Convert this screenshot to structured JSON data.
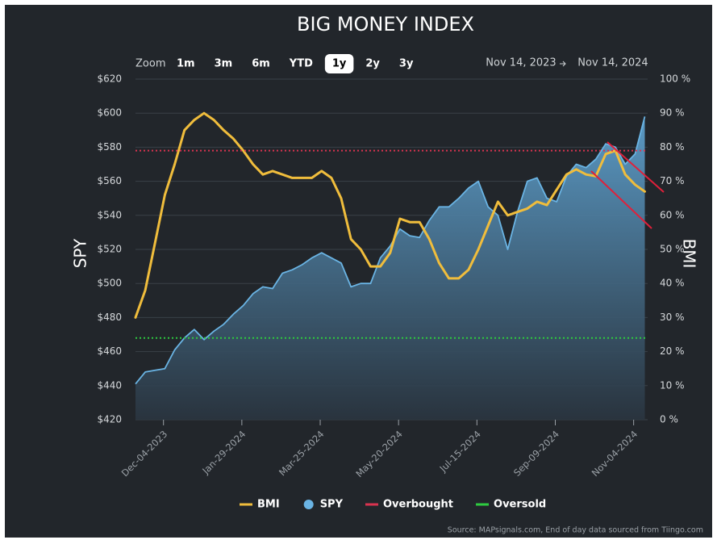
{
  "chart_data": {
    "type": "line",
    "title": "BIG MONEY INDEX",
    "y_label": "SPY",
    "y2_label": "BMI",
    "x": [
      "2023-11-14",
      "2023-11-21",
      "2023-11-28",
      "2023-12-05",
      "2023-12-12",
      "2023-12-19",
      "2023-12-26",
      "2024-01-02",
      "2024-01-09",
      "2024-01-16",
      "2024-01-23",
      "2024-01-30",
      "2024-02-06",
      "2024-02-13",
      "2024-02-20",
      "2024-02-27",
      "2024-03-05",
      "2024-03-12",
      "2024-03-19",
      "2024-03-26",
      "2024-04-02",
      "2024-04-09",
      "2024-04-16",
      "2024-04-23",
      "2024-04-30",
      "2024-05-07",
      "2024-05-14",
      "2024-05-21",
      "2024-05-28",
      "2024-06-04",
      "2024-06-11",
      "2024-06-18",
      "2024-06-25",
      "2024-07-02",
      "2024-07-09",
      "2024-07-16",
      "2024-07-23",
      "2024-07-30",
      "2024-08-06",
      "2024-08-13",
      "2024-08-20",
      "2024-08-27",
      "2024-09-03",
      "2024-09-10",
      "2024-09-17",
      "2024-09-24",
      "2024-10-01",
      "2024-10-08",
      "2024-10-15",
      "2024-10-22",
      "2024-10-29",
      "2024-11-05",
      "2024-11-12"
    ],
    "xlim": [
      "2023-11-14",
      "2024-11-14"
    ],
    "xticks": [
      {
        "value": "2023-12-04",
        "label": "Dec-04-2023"
      },
      {
        "value": "2024-01-29",
        "label": "Jan-29-2024"
      },
      {
        "value": "2024-03-25",
        "label": "Mar-25-2024"
      },
      {
        "value": "2024-05-20",
        "label": "May-20-2024"
      },
      {
        "value": "2024-07-15",
        "label": "Jul-15-2024"
      },
      {
        "value": "2024-09-09",
        "label": "Sep-09-2024"
      },
      {
        "value": "2024-11-04",
        "label": "Nov-04-2024"
      }
    ],
    "ylim": [
      420,
      620
    ],
    "yticks": [
      {
        "value": 420,
        "label": "$420"
      },
      {
        "value": 440,
        "label": "$440"
      },
      {
        "value": 460,
        "label": "$460"
      },
      {
        "value": 480,
        "label": "$480"
      },
      {
        "value": 500,
        "label": "$500"
      },
      {
        "value": 520,
        "label": "$520"
      },
      {
        "value": 540,
        "label": "$540"
      },
      {
        "value": 560,
        "label": "$560"
      },
      {
        "value": 580,
        "label": "$580"
      },
      {
        "value": 600,
        "label": "$600"
      },
      {
        "value": 620,
        "label": "$620"
      }
    ],
    "y2lim": [
      0,
      100
    ],
    "y2ticks": [
      {
        "value": 0,
        "label": "0 %"
      },
      {
        "value": 10,
        "label": "10 %"
      },
      {
        "value": 20,
        "label": "20 %"
      },
      {
        "value": 30,
        "label": "30 %"
      },
      {
        "value": 40,
        "label": "40 %"
      },
      {
        "value": 50,
        "label": "50 %"
      },
      {
        "value": 60,
        "label": "60 %"
      },
      {
        "value": 70,
        "label": "70 %"
      },
      {
        "value": 80,
        "label": "80 %"
      },
      {
        "value": 90,
        "label": "90 %"
      },
      {
        "value": 100,
        "label": "100 %"
      }
    ],
    "grid": true,
    "series": [
      {
        "name": "BMI",
        "color": "#f0bd3c",
        "axis": "y2",
        "style": "line",
        "values": [
          30,
          38,
          52,
          66,
          75,
          85,
          88,
          90,
          88,
          85,
          82.5,
          79,
          75,
          72,
          73,
          72,
          71,
          71,
          71,
          73,
          71,
          65,
          53,
          50,
          45,
          45,
          49,
          59,
          58,
          58,
          53,
          46,
          41.5,
          41.5,
          44,
          50,
          57,
          64,
          60,
          61,
          62,
          64,
          63,
          67.5,
          72,
          73.5,
          72,
          71.5,
          78,
          79,
          72,
          69,
          67
        ]
      },
      {
        "name": "SPY",
        "color": "#6ab4e4",
        "axis": "y",
        "style": "area",
        "values": [
          441,
          448,
          449,
          450,
          461,
          468,
          473,
          467,
          472,
          476,
          482,
          487,
          494,
          498,
          497,
          506,
          508,
          511,
          515,
          518,
          515,
          512,
          498,
          500,
          500,
          515,
          522,
          532,
          528,
          527,
          537,
          545,
          545,
          550,
          556,
          560,
          545,
          540,
          520,
          542,
          560,
          562,
          550,
          548,
          563,
          570,
          568,
          573,
          582,
          580,
          570,
          576,
          598
        ]
      }
    ],
    "reference_lines": [
      {
        "name": "Overbought",
        "value": 79,
        "axis": "y2",
        "color": "#d9334f"
      },
      {
        "name": "Oversold",
        "value": 24,
        "axis": "y2",
        "color": "#2ecc40"
      }
    ]
  },
  "controls": {
    "zoom_label": "Zoom",
    "zoom_options": [
      "1m",
      "3m",
      "6m",
      "YTD",
      "1y",
      "2y",
      "3y"
    ],
    "active_zoom_index": 4,
    "date_from": "Nov 14, 2023",
    "date_to": "Nov 14, 2024"
  },
  "source": "Source: MAPsignals.com, End of day data sourced from Tiingo.com"
}
